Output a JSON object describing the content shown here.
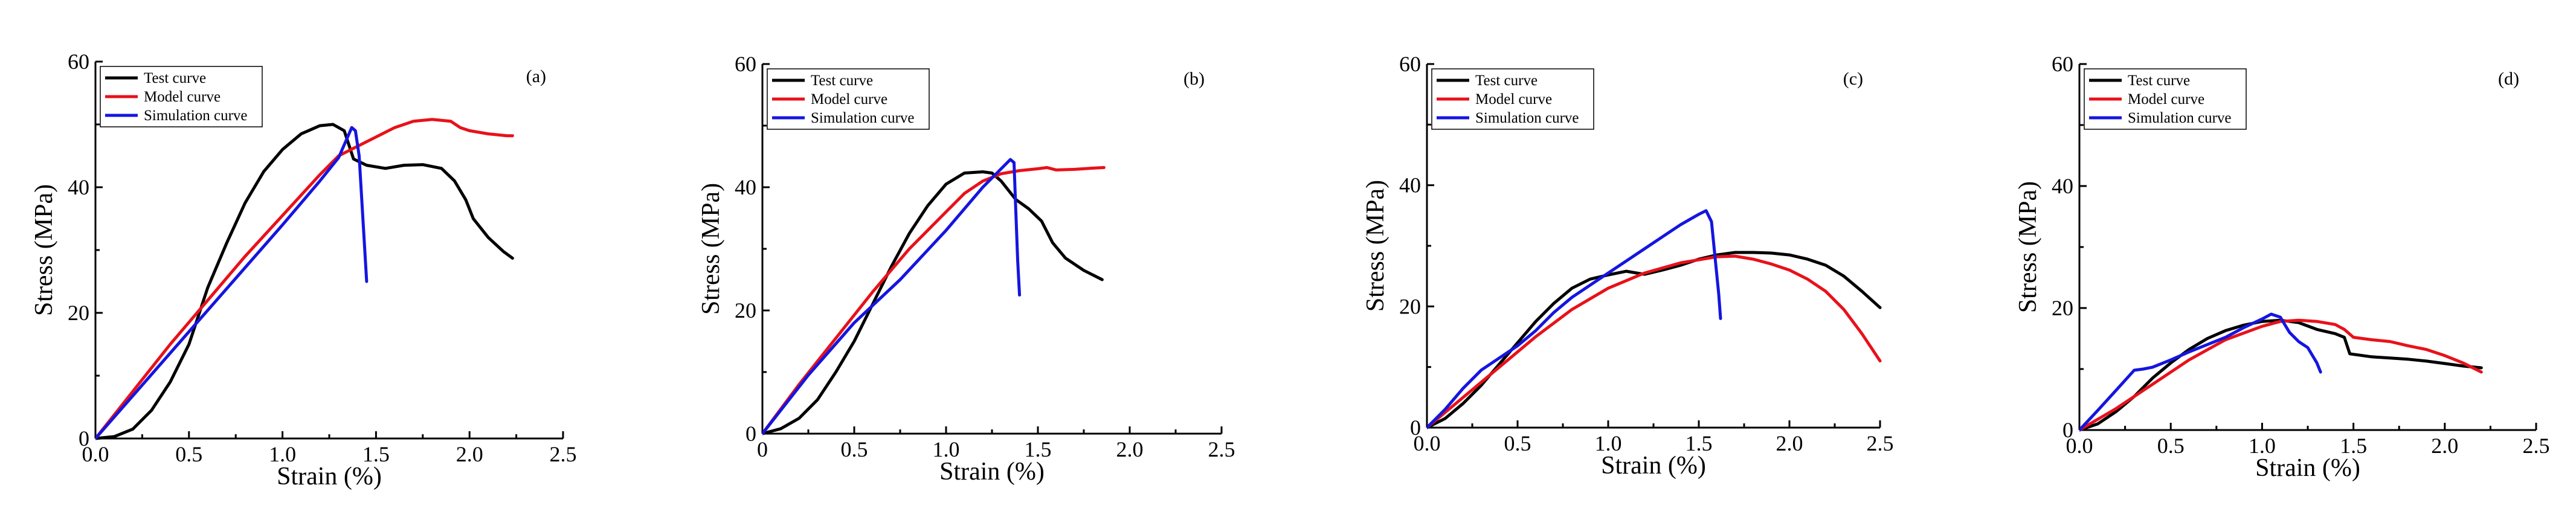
{
  "colors": {
    "test": "#000000",
    "model": "#e8111a",
    "simulation": "#1515e0"
  },
  "chart_data": [
    {
      "type": "line",
      "panel_label": "(a)",
      "xlabel": "Strain (%)",
      "ylabel": "Stress (MPa)",
      "xlim": [
        0,
        2.5
      ],
      "ylim": [
        0,
        60
      ],
      "xticks": [
        "0.0",
        "0.5",
        "1.0",
        "1.5",
        "2.0",
        "2.5"
      ],
      "yticks": [
        "0",
        "20",
        "40",
        "60"
      ],
      "legend": [
        "Test curve",
        "Model curve",
        "Simulation curve"
      ],
      "series": [
        {
          "name": "Test curve",
          "points": [
            [
              0,
              0
            ],
            [
              0.1,
              0.3
            ],
            [
              0.2,
              1.5
            ],
            [
              0.3,
              4.5
            ],
            [
              0.4,
              9
            ],
            [
              0.5,
              15
            ],
            [
              0.6,
              24
            ],
            [
              0.7,
              31
            ],
            [
              0.8,
              37.5
            ],
            [
              0.9,
              42.5
            ],
            [
              1.0,
              46
            ],
            [
              1.1,
              48.5
            ],
            [
              1.2,
              49.8
            ],
            [
              1.27,
              50
            ],
            [
              1.33,
              49
            ],
            [
              1.38,
              44.5
            ],
            [
              1.45,
              43.5
            ],
            [
              1.55,
              43
            ],
            [
              1.65,
              43.5
            ],
            [
              1.75,
              43.6
            ],
            [
              1.85,
              43
            ],
            [
              1.92,
              41
            ],
            [
              1.98,
              38
            ],
            [
              2.02,
              35
            ],
            [
              2.1,
              32
            ],
            [
              2.18,
              29.8
            ],
            [
              2.23,
              28.7
            ]
          ]
        },
        {
          "name": "Model curve",
          "points": [
            [
              0,
              0
            ],
            [
              0.2,
              7.5
            ],
            [
              0.4,
              15
            ],
            [
              0.6,
              22
            ],
            [
              0.8,
              29
            ],
            [
              1.0,
              35.5
            ],
            [
              1.2,
              42
            ],
            [
              1.3,
              45
            ],
            [
              1.4,
              46.5
            ],
            [
              1.5,
              48
            ],
            [
              1.6,
              49.5
            ],
            [
              1.7,
              50.5
            ],
            [
              1.8,
              50.8
            ],
            [
              1.9,
              50.5
            ],
            [
              1.95,
              49.5
            ],
            [
              2.0,
              49
            ],
            [
              2.1,
              48.5
            ],
            [
              2.2,
              48.2
            ],
            [
              2.23,
              48.2
            ]
          ]
        },
        {
          "name": "Simulation curve",
          "points": [
            [
              0,
              0
            ],
            [
              0.25,
              8.5
            ],
            [
              0.5,
              17
            ],
            [
              0.75,
              25.5
            ],
            [
              1.0,
              34
            ],
            [
              1.2,
              41
            ],
            [
              1.3,
              44.7
            ],
            [
              1.37,
              49.5
            ],
            [
              1.39,
              49
            ],
            [
              1.41,
              45
            ],
            [
              1.43,
              35
            ],
            [
              1.45,
              25
            ]
          ]
        }
      ]
    },
    {
      "type": "line",
      "panel_label": "(b)",
      "xlabel": "Strain (%)",
      "ylabel": "Stress (MPa)",
      "xlim": [
        0,
        2.5
      ],
      "ylim": [
        0,
        60
      ],
      "xticks": [
        "0",
        "0.5",
        "1.0",
        "1.5",
        "2.0",
        "2.5"
      ],
      "yticks": [
        "0",
        "20",
        "40",
        "60"
      ],
      "legend": [
        "Test curve",
        "Model curve",
        "Simulation curve"
      ],
      "series": [
        {
          "name": "Test curve",
          "points": [
            [
              0,
              0
            ],
            [
              0.1,
              0.8
            ],
            [
              0.2,
              2.5
            ],
            [
              0.3,
              5.5
            ],
            [
              0.4,
              10
            ],
            [
              0.5,
              15
            ],
            [
              0.6,
              21
            ],
            [
              0.7,
              27
            ],
            [
              0.8,
              32.5
            ],
            [
              0.9,
              37
            ],
            [
              1.0,
              40.5
            ],
            [
              1.1,
              42.3
            ],
            [
              1.2,
              42.5
            ],
            [
              1.25,
              42.3
            ],
            [
              1.3,
              41
            ],
            [
              1.38,
              38
            ],
            [
              1.45,
              36.5
            ],
            [
              1.52,
              34.5
            ],
            [
              1.58,
              31
            ],
            [
              1.65,
              28.5
            ],
            [
              1.75,
              26.5
            ],
            [
              1.85,
              25
            ]
          ]
        },
        {
          "name": "Model curve",
          "points": [
            [
              0,
              0
            ],
            [
              0.2,
              8
            ],
            [
              0.4,
              15.5
            ],
            [
              0.6,
              23
            ],
            [
              0.8,
              30
            ],
            [
              1.0,
              36
            ],
            [
              1.1,
              39
            ],
            [
              1.2,
              41
            ],
            [
              1.3,
              42.2
            ],
            [
              1.4,
              42.7
            ],
            [
              1.5,
              43
            ],
            [
              1.55,
              43.2
            ],
            [
              1.6,
              42.8
            ],
            [
              1.7,
              42.9
            ],
            [
              1.8,
              43.1
            ],
            [
              1.86,
              43.2
            ]
          ]
        },
        {
          "name": "Simulation curve",
          "points": [
            [
              0,
              0
            ],
            [
              0.25,
              9.5
            ],
            [
              0.5,
              18
            ],
            [
              0.75,
              25
            ],
            [
              1.0,
              33
            ],
            [
              1.2,
              40
            ],
            [
              1.3,
              43
            ],
            [
              1.35,
              44.5
            ],
            [
              1.37,
              44
            ],
            [
              1.38,
              36
            ],
            [
              1.39,
              28
            ],
            [
              1.4,
              22.5
            ]
          ]
        }
      ]
    },
    {
      "type": "line",
      "panel_label": "(c)",
      "xlabel": "Strain (%)",
      "ylabel": "Stress (MPa)",
      "xlim": [
        0,
        2.5
      ],
      "ylim": [
        0,
        60
      ],
      "xticks": [
        "0.0",
        "0.5",
        "1.0",
        "1.5",
        "2.0",
        "2.5"
      ],
      "yticks": [
        "0",
        "20",
        "40",
        "60"
      ],
      "legend": [
        "Test curve",
        "Model curve",
        "Simulation curve"
      ],
      "series": [
        {
          "name": "Test curve",
          "points": [
            [
              0,
              0
            ],
            [
              0.1,
              1.5
            ],
            [
              0.2,
              4
            ],
            [
              0.3,
              7
            ],
            [
              0.4,
              10.5
            ],
            [
              0.5,
              14
            ],
            [
              0.6,
              17.5
            ],
            [
              0.7,
              20.5
            ],
            [
              0.8,
              23
            ],
            [
              0.9,
              24.5
            ],
            [
              1.0,
              25.2
            ],
            [
              1.1,
              25.8
            ],
            [
              1.2,
              25.3
            ],
            [
              1.3,
              26
            ],
            [
              1.4,
              26.8
            ],
            [
              1.5,
              27.8
            ],
            [
              1.6,
              28.5
            ],
            [
              1.7,
              28.9
            ],
            [
              1.8,
              28.9
            ],
            [
              1.9,
              28.8
            ],
            [
              2.0,
              28.5
            ],
            [
              2.1,
              27.8
            ],
            [
              2.2,
              26.8
            ],
            [
              2.3,
              25
            ],
            [
              2.4,
              22.5
            ],
            [
              2.5,
              19.8
            ]
          ]
        },
        {
          "name": "Model curve",
          "points": [
            [
              0,
              0
            ],
            [
              0.2,
              5
            ],
            [
              0.4,
              10
            ],
            [
              0.6,
              15
            ],
            [
              0.8,
              19.5
            ],
            [
              1.0,
              23
            ],
            [
              1.2,
              25.5
            ],
            [
              1.4,
              27.2
            ],
            [
              1.6,
              28.2
            ],
            [
              1.7,
              28.3
            ],
            [
              1.8,
              27.8
            ],
            [
              1.9,
              27
            ],
            [
              2.0,
              26
            ],
            [
              2.1,
              24.5
            ],
            [
              2.2,
              22.5
            ],
            [
              2.3,
              19.5
            ],
            [
              2.4,
              15.5
            ],
            [
              2.5,
              11
            ]
          ]
        },
        {
          "name": "Simulation curve",
          "points": [
            [
              0,
              0
            ],
            [
              0.1,
              3
            ],
            [
              0.2,
              6.5
            ],
            [
              0.3,
              9.5
            ],
            [
              0.4,
              11.5
            ],
            [
              0.5,
              13.5
            ],
            [
              0.6,
              16
            ],
            [
              0.7,
              19
            ],
            [
              0.8,
              21.5
            ],
            [
              0.9,
              23.5
            ],
            [
              1.0,
              25.5
            ],
            [
              1.1,
              27.5
            ],
            [
              1.2,
              29.5
            ],
            [
              1.3,
              31.5
            ],
            [
              1.4,
              33.5
            ],
            [
              1.5,
              35.2
            ],
            [
              1.54,
              35.8
            ],
            [
              1.57,
              34
            ],
            [
              1.59,
              28
            ],
            [
              1.61,
              22
            ],
            [
              1.62,
              18
            ]
          ]
        }
      ]
    },
    {
      "type": "line",
      "panel_label": "(d)",
      "xlabel": "Strain (%)",
      "ylabel": "Stress (MPa)",
      "xlim": [
        0,
        2.5
      ],
      "ylim": [
        0,
        60
      ],
      "xticks": [
        "0.0",
        "0.5",
        "1.0",
        "1.5",
        "2.0",
        "2.5"
      ],
      "yticks": [
        "0",
        "20",
        "40",
        "60"
      ],
      "legend": [
        "Test curve",
        "Model curve",
        "Simulation curve"
      ],
      "series": [
        {
          "name": "Test curve",
          "points": [
            [
              0,
              0
            ],
            [
              0.1,
              1
            ],
            [
              0.2,
              3
            ],
            [
              0.3,
              5.5
            ],
            [
              0.4,
              8.5
            ],
            [
              0.5,
              11
            ],
            [
              0.6,
              13.2
            ],
            [
              0.7,
              15
            ],
            [
              0.8,
              16.3
            ],
            [
              0.9,
              17.2
            ],
            [
              1.0,
              17.8
            ],
            [
              1.1,
              18
            ],
            [
              1.2,
              17.6
            ],
            [
              1.3,
              16.5
            ],
            [
              1.4,
              15.8
            ],
            [
              1.45,
              15.2
            ],
            [
              1.48,
              12.5
            ],
            [
              1.6,
              12
            ],
            [
              1.7,
              11.8
            ],
            [
              1.8,
              11.6
            ],
            [
              1.9,
              11.3
            ],
            [
              2.0,
              10.9
            ],
            [
              2.1,
              10.5
            ],
            [
              2.2,
              10.2
            ]
          ]
        },
        {
          "name": "Model curve",
          "points": [
            [
              0,
              0
            ],
            [
              0.2,
              3.5
            ],
            [
              0.4,
              7.5
            ],
            [
              0.6,
              11.5
            ],
            [
              0.8,
              14.8
            ],
            [
              1.0,
              17
            ],
            [
              1.1,
              17.8
            ],
            [
              1.2,
              18
            ],
            [
              1.3,
              17.8
            ],
            [
              1.4,
              17.3
            ],
            [
              1.45,
              16.5
            ],
            [
              1.5,
              15.2
            ],
            [
              1.6,
              14.8
            ],
            [
              1.7,
              14.5
            ],
            [
              1.8,
              13.8
            ],
            [
              1.9,
              13.2
            ],
            [
              2.0,
              12.2
            ],
            [
              2.1,
              11
            ],
            [
              2.2,
              9.5
            ]
          ]
        },
        {
          "name": "Simulation curve",
          "points": [
            [
              0,
              0
            ],
            [
              0.1,
              3.2
            ],
            [
              0.2,
              6.5
            ],
            [
              0.3,
              9.8
            ],
            [
              0.35,
              10
            ],
            [
              0.4,
              10.3
            ],
            [
              0.5,
              11.5
            ],
            [
              0.6,
              12.8
            ],
            [
              0.7,
              14
            ],
            [
              0.8,
              15.2
            ],
            [
              0.9,
              16.8
            ],
            [
              1.0,
              18.2
            ],
            [
              1.05,
              19
            ],
            [
              1.1,
              18.5
            ],
            [
              1.15,
              16
            ],
            [
              1.2,
              14.5
            ],
            [
              1.25,
              13.5
            ],
            [
              1.3,
              11
            ],
            [
              1.32,
              9.5
            ]
          ]
        }
      ]
    }
  ]
}
